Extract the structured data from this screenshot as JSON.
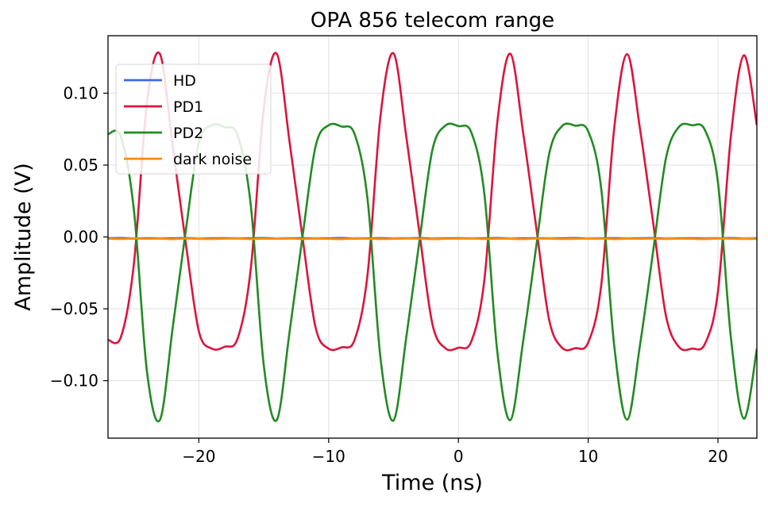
{
  "chart_data": {
    "type": "line",
    "title": "OPA 856 telecom range",
    "xlabel": "Time (ns)",
    "ylabel": "Amplitude (V)",
    "xlim": [
      -27,
      23
    ],
    "ylim": [
      -0.14,
      0.14
    ],
    "grid": true,
    "legend_position": "top-left",
    "x_ticks": [
      -20,
      -10,
      0,
      10,
      20
    ],
    "x_tick_labels": [
      "−20",
      "−10",
      "0",
      "10",
      "20"
    ],
    "y_ticks": [
      0.1,
      0.05,
      0.0,
      -0.05,
      -0.1
    ],
    "y_tick_labels": [
      "0.10",
      "0.05",
      "0.00",
      "−0.05",
      "−0.10"
    ],
    "x": [
      -27,
      -26,
      -25,
      -24,
      -23,
      -22,
      -21,
      -20,
      -19,
      -18,
      -17,
      -16,
      -15,
      -14,
      -13,
      -12,
      -11,
      -10,
      -9,
      -8,
      -7,
      -6,
      -5,
      -4,
      -3,
      -2,
      -1,
      0,
      1,
      2,
      3,
      4,
      5,
      6,
      7,
      8,
      9,
      10,
      11,
      12,
      13,
      14,
      15,
      16,
      17,
      18,
      19,
      20,
      21,
      22,
      23
    ],
    "series": [
      {
        "name": "HD",
        "color": "#4169e1",
        "values": [
          -0.001,
          -0.0008,
          -0.0012,
          -0.0009,
          -0.0011,
          -0.001,
          -0.0008,
          -0.0012,
          -0.001,
          -0.0009,
          -0.0011,
          -0.001,
          -0.0008,
          -0.0012,
          -0.001,
          -0.0009,
          -0.0011,
          -0.001,
          -0.0008,
          -0.0012,
          -0.001,
          -0.0009,
          -0.0011,
          -0.001,
          -0.0008,
          -0.0012,
          -0.001,
          -0.0009,
          -0.0011,
          -0.001,
          -0.0008,
          -0.0012,
          -0.001,
          -0.0009,
          -0.0011,
          -0.001,
          -0.0008,
          -0.0012,
          -0.001,
          -0.0009,
          -0.0011,
          -0.001,
          -0.0008,
          -0.0012,
          -0.001,
          -0.0009,
          -0.0011,
          -0.001,
          -0.0008,
          -0.0012,
          -0.001
        ]
      },
      {
        "name": "PD1",
        "color": "#dc143c",
        "values": [
          -0.0716,
          -0.0695,
          -0.0183,
          0.0935,
          0.1273,
          0.0621,
          -0.0049,
          -0.0656,
          -0.0777,
          -0.0764,
          -0.0704,
          -0.0222,
          0.0891,
          0.1275,
          0.0655,
          -0.0011,
          -0.0633,
          -0.0777,
          -0.0768,
          -0.0716,
          -0.0261,
          0.0845,
          0.1277,
          0.0687,
          0.0027,
          -0.0607,
          -0.0775,
          -0.0771,
          -0.0726,
          -0.03,
          0.0799,
          0.1275,
          0.0718,
          0.0066,
          -0.058,
          -0.0772,
          -0.0774,
          -0.0735,
          -0.034,
          0.0751,
          0.1271,
          0.0748,
          0.0104,
          -0.0551,
          -0.0766,
          -0.0777,
          -0.0743,
          -0.038,
          0.0703,
          0.1264,
          0.0777
        ]
      },
      {
        "name": "PD2",
        "color": "#228b22",
        "values": [
          0.0716,
          0.0695,
          0.0183,
          -0.0935,
          -0.1273,
          -0.0621,
          0.0049,
          0.0656,
          0.0777,
          0.0764,
          0.0704,
          0.0222,
          -0.0891,
          -0.1275,
          -0.0655,
          0.0011,
          0.0633,
          0.0777,
          0.0768,
          0.0716,
          0.0261,
          -0.0845,
          -0.1277,
          -0.0687,
          -0.0027,
          0.0607,
          0.0775,
          0.0771,
          0.0726,
          0.03,
          -0.0799,
          -0.1275,
          -0.0718,
          -0.0066,
          0.058,
          0.0772,
          0.0774,
          0.0735,
          0.034,
          -0.0751,
          -0.1271,
          -0.0748,
          -0.0104,
          0.0551,
          0.0766,
          0.0777,
          0.0743,
          0.038,
          -0.0703,
          -0.1264,
          -0.0777
        ]
      },
      {
        "name": "dark noise",
        "color": "#ff8c00",
        "values": [
          -0.0012,
          -0.0014,
          -0.0011,
          -0.0013,
          -0.0012,
          -0.0015,
          -0.0011,
          -0.0013,
          -0.0014,
          -0.0012,
          -0.0011,
          -0.0015,
          -0.0012,
          -0.0013,
          -0.0011,
          -0.0014,
          -0.0012,
          -0.0013,
          -0.0015,
          -0.0011,
          -0.0012,
          -0.0014,
          -0.0013,
          -0.0011,
          -0.0012,
          -0.0015,
          -0.0013,
          -0.0012,
          -0.0011,
          -0.0014,
          -0.0012,
          -0.0013,
          -0.0015,
          -0.0011,
          -0.0012,
          -0.0014,
          -0.0013,
          -0.0012,
          -0.0011,
          -0.0015,
          -0.0012,
          -0.0013,
          -0.0011,
          -0.0014,
          -0.0012,
          -0.0013,
          -0.0015,
          -0.0011,
          -0.0012,
          -0.0014,
          -0.0013
        ]
      }
    ]
  }
}
